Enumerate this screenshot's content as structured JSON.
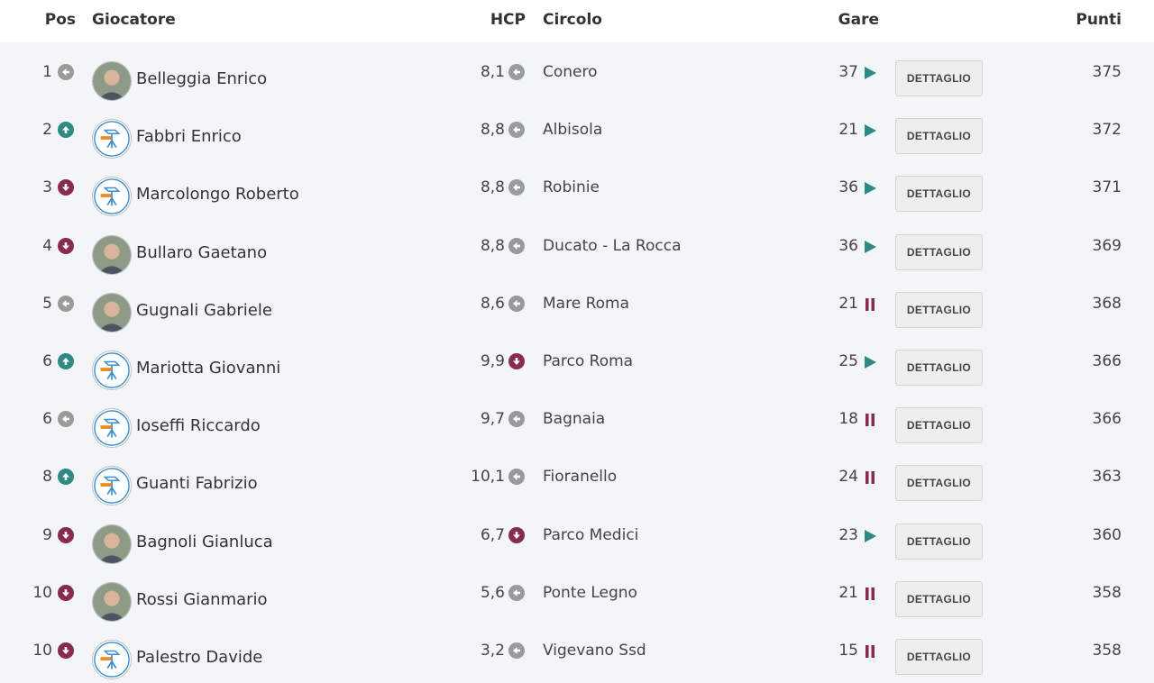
{
  "header": {
    "pos": "Pos",
    "player": "Giocatore",
    "hcp": "HCP",
    "club": "Circolo",
    "gare": "Gare",
    "punti": "Punti"
  },
  "colors": {
    "trend_up": "#2f8a84",
    "trend_down": "#8a2a4c",
    "trend_same": "#9a9a9a",
    "play_icon": "#2f8a84",
    "pause_icon": "#8a2a4c"
  },
  "rows": [
    {
      "pos": "1",
      "pos_trend": "same",
      "name": "Belleggia Enrico",
      "avatar": "photo",
      "hcp": "8,1",
      "hcp_trend": "same",
      "club": "Conero",
      "gare": "37",
      "status": "play",
      "button": "DETTAGLIO",
      "punti": "375"
    },
    {
      "pos": "2",
      "pos_trend": "up",
      "name": "Fabbri Enrico",
      "avatar": "logo",
      "hcp": "8,8",
      "hcp_trend": "same",
      "club": "Albisola",
      "gare": "21",
      "status": "play",
      "button": "DETTAGLIO",
      "punti": "372"
    },
    {
      "pos": "3",
      "pos_trend": "down",
      "name": "Marcolongo Roberto",
      "avatar": "logo",
      "hcp": "8,8",
      "hcp_trend": "same",
      "club": "Robinie",
      "gare": "36",
      "status": "play",
      "button": "DETTAGLIO",
      "punti": "371"
    },
    {
      "pos": "4",
      "pos_trend": "down",
      "name": "Bullaro Gaetano",
      "avatar": "photo",
      "hcp": "8,8",
      "hcp_trend": "same",
      "club": "Ducato - La Rocca",
      "gare": "36",
      "status": "play",
      "button": "DETTAGLIO",
      "punti": "369"
    },
    {
      "pos": "5",
      "pos_trend": "same",
      "name": "Gugnali Gabriele",
      "avatar": "photo",
      "hcp": "8,6",
      "hcp_trend": "same",
      "club": "Mare Roma",
      "gare": "21",
      "status": "pause",
      "button": "DETTAGLIO",
      "punti": "368"
    },
    {
      "pos": "6",
      "pos_trend": "up",
      "name": "Mariotta Giovanni",
      "avatar": "logo",
      "hcp": "9,9",
      "hcp_trend": "down",
      "club": "Parco Roma",
      "gare": "25",
      "status": "play",
      "button": "DETTAGLIO",
      "punti": "366"
    },
    {
      "pos": "6",
      "pos_trend": "same",
      "name": "Ioseffi Riccardo",
      "avatar": "logo",
      "hcp": "9,7",
      "hcp_trend": "same",
      "club": "Bagnaia",
      "gare": "18",
      "status": "pause",
      "button": "DETTAGLIO",
      "punti": "366"
    },
    {
      "pos": "8",
      "pos_trend": "up",
      "name": "Guanti Fabrizio",
      "avatar": "logo",
      "hcp": "10,1",
      "hcp_trend": "same",
      "club": "Fioranello",
      "gare": "24",
      "status": "pause",
      "button": "DETTAGLIO",
      "punti": "363"
    },
    {
      "pos": "9",
      "pos_trend": "down",
      "name": "Bagnoli Gianluca",
      "avatar": "photo",
      "hcp": "6,7",
      "hcp_trend": "down",
      "club": "Parco Medici",
      "gare": "23",
      "status": "play",
      "button": "DETTAGLIO",
      "punti": "360"
    },
    {
      "pos": "10",
      "pos_trend": "down",
      "name": "Rossi Gianmario",
      "avatar": "photo",
      "hcp": "5,6",
      "hcp_trend": "same",
      "club": "Ponte Legno",
      "gare": "21",
      "status": "pause",
      "button": "DETTAGLIO",
      "punti": "358"
    },
    {
      "pos": "10",
      "pos_trend": "down",
      "name": "Palestro Davide",
      "avatar": "logo",
      "hcp": "3,2",
      "hcp_trend": "same",
      "club": "Vigevano Ssd",
      "gare": "15",
      "status": "pause",
      "button": "DETTAGLIO",
      "punti": "358"
    }
  ]
}
